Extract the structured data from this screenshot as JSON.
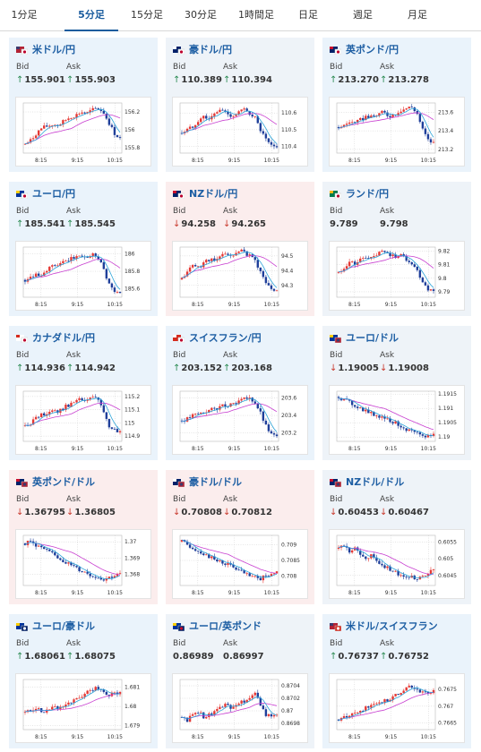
{
  "tabs": [
    "1分足",
    "5分足",
    "15分足",
    "30分足",
    "1時間足",
    "日足",
    "週足",
    "月足"
  ],
  "active_tab": 1,
  "colors": {
    "up": "#2a8a52",
    "down": "#c93a2e",
    "candle_up": "#e53935",
    "candle_down": "#1f3f9a",
    "ma_short": "#29a3d8",
    "ma_long": "#c83fd0"
  },
  "labels": {
    "bid": "Bid",
    "ask": "Ask"
  },
  "cards": [
    {
      "name": "米ドル/円",
      "flag": "us-jp-flag",
      "state": "up",
      "bid": "155.901",
      "ask": "155.903",
      "bid_dir": "up",
      "ask_dir": "up",
      "chart_data": {
        "type": "candlestick",
        "xticks": [
          "8:15",
          "9:15",
          "10:15"
        ],
        "yticks": [
          "156.2",
          "156",
          "155.8"
        ],
        "ylim": [
          155.74,
          156.3
        ],
        "trend": [
          155.84,
          155.88,
          155.96,
          156.02,
          156.04,
          156.06,
          156.05,
          156.1,
          156.14,
          156.16,
          156.2,
          156.18,
          156.22,
          156.24,
          156.2,
          156.08,
          155.96,
          155.9
        ]
      }
    },
    {
      "name": "豪ドル/円",
      "flag": "au-jp-flag",
      "state": "flat",
      "bid": "110.389",
      "ask": "110.394",
      "bid_dir": "up",
      "ask_dir": "up",
      "chart_data": {
        "type": "candlestick",
        "xticks": [
          "8:15",
          "9:15",
          "10:15"
        ],
        "yticks": [
          "110.6",
          "110.5",
          "110.4"
        ],
        "ylim": [
          110.36,
          110.66
        ],
        "trend": [
          110.48,
          110.5,
          110.52,
          110.56,
          110.58,
          110.56,
          110.6,
          110.62,
          110.6,
          110.58,
          110.6,
          110.62,
          110.6,
          110.58,
          110.5,
          110.44,
          110.4,
          110.39
        ]
      }
    },
    {
      "name": "英ポンド/円",
      "flag": "gb-jp-flag",
      "state": "up",
      "bid": "213.270",
      "ask": "213.278",
      "bid_dir": "up",
      "ask_dir": "up",
      "chart_data": {
        "type": "candlestick",
        "xticks": [
          "8:15",
          "9:15",
          "10:15"
        ],
        "yticks": [
          "213.6",
          "213.4",
          "213.2"
        ],
        "ylim": [
          213.16,
          213.7
        ],
        "trend": [
          213.44,
          213.46,
          213.5,
          213.48,
          213.52,
          213.56,
          213.54,
          213.58,
          213.6,
          213.56,
          213.58,
          213.62,
          213.64,
          213.66,
          213.6,
          213.42,
          213.3,
          213.27
        ]
      }
    },
    {
      "name": "ユーロ/円",
      "flag": "eu-jp-flag",
      "state": "up",
      "bid": "185.541",
      "ask": "185.545",
      "bid_dir": "up",
      "ask_dir": "up",
      "chart_data": {
        "type": "candlestick",
        "xticks": [
          "8:15",
          "9:15",
          "10:15"
        ],
        "yticks": [
          "186",
          "185.8",
          "185.6"
        ],
        "ylim": [
          185.5,
          186.08
        ],
        "trend": [
          185.7,
          185.74,
          185.78,
          185.76,
          185.82,
          185.86,
          185.88,
          185.9,
          185.94,
          185.96,
          185.98,
          185.96,
          186.0,
          185.98,
          185.84,
          185.66,
          185.56,
          185.54
        ]
      }
    },
    {
      "name": "NZドル/円",
      "flag": "nz-jp-flag",
      "state": "down",
      "bid": "94.258",
      "ask": "94.265",
      "bid_dir": "down",
      "ask_dir": "down",
      "chart_data": {
        "type": "candlestick",
        "xticks": [
          "8:15",
          "9:15",
          "10:15"
        ],
        "yticks": [
          "94.5",
          "94.4",
          "94.3"
        ],
        "ylim": [
          94.22,
          94.56
        ],
        "trend": [
          94.34,
          94.4,
          94.44,
          94.42,
          94.46,
          94.48,
          94.46,
          94.5,
          94.52,
          94.5,
          94.52,
          94.54,
          94.5,
          94.48,
          94.4,
          94.32,
          94.28,
          94.26
        ]
      }
    },
    {
      "name": "ランド/円",
      "flag": "za-jp-flag",
      "state": "flat",
      "bid": "9.789",
      "ask": "9.798",
      "bid_dir": "none",
      "ask_dir": "none",
      "chart_data": {
        "type": "candlestick",
        "xticks": [
          "8:15",
          "9:15",
          "10:15"
        ],
        "yticks": [
          "9.82",
          "9.81",
          "9.8",
          "9.79"
        ],
        "ylim": [
          9.786,
          9.823
        ],
        "trend": [
          9.804,
          9.808,
          9.812,
          9.81,
          9.814,
          9.816,
          9.814,
          9.818,
          9.82,
          9.818,
          9.816,
          9.818,
          9.814,
          9.812,
          9.806,
          9.798,
          9.792,
          9.79
        ]
      }
    },
    {
      "name": "カナダドル/円",
      "flag": "ca-jp-flag",
      "state": "up",
      "bid": "114.936",
      "ask": "114.942",
      "bid_dir": "up",
      "ask_dir": "up",
      "chart_data": {
        "type": "candlestick",
        "xticks": [
          "8:15",
          "9:15",
          "10:15"
        ],
        "yticks": [
          "115.2",
          "115.1",
          "115",
          "114.9"
        ],
        "ylim": [
          114.86,
          115.24
        ],
        "trend": [
          114.98,
          115.0,
          115.04,
          115.06,
          115.08,
          115.1,
          115.08,
          115.12,
          115.14,
          115.16,
          115.18,
          115.16,
          115.2,
          115.18,
          115.08,
          114.98,
          114.94,
          114.93
        ]
      }
    },
    {
      "name": "スイスフラン/円",
      "flag": "ch-jp-flag",
      "state": "up",
      "bid": "203.152",
      "ask": "203.168",
      "bid_dir": "up",
      "ask_dir": "up",
      "chart_data": {
        "type": "candlestick",
        "xticks": [
          "8:15",
          "9:15",
          "10:15"
        ],
        "yticks": [
          "203.6",
          "203.4",
          "203.2"
        ],
        "ylim": [
          203.1,
          203.68
        ],
        "trend": [
          203.34,
          203.36,
          203.4,
          203.42,
          203.44,
          203.46,
          203.48,
          203.5,
          203.52,
          203.54,
          203.56,
          203.58,
          203.6,
          203.56,
          203.44,
          203.28,
          203.18,
          203.15
        ]
      }
    },
    {
      "name": "ユーロ/ドル",
      "flag": "eu-us-flag",
      "state": "flat",
      "bid": "1.19005",
      "ask": "1.19008",
      "bid_dir": "down",
      "ask_dir": "down",
      "chart_data": {
        "type": "candlestick",
        "xticks": [
          "8:15",
          "9:15",
          "10:15"
        ],
        "yticks": [
          "1.1915",
          "1.191",
          "1.1905",
          "1.19"
        ],
        "ylim": [
          1.18985,
          1.1916
        ],
        "trend": [
          1.1914,
          1.1913,
          1.1912,
          1.1911,
          1.191,
          1.1909,
          1.1908,
          1.19075,
          1.1907,
          1.1906,
          1.1905,
          1.1904,
          1.1903,
          1.1902,
          1.1901,
          1.19,
          1.19005,
          1.19008
        ]
      }
    },
    {
      "name": "英ポンド/ドル",
      "flag": "gb-us-flag",
      "state": "down",
      "bid": "1.36795",
      "ask": "1.36805",
      "bid_dir": "down",
      "ask_dir": "down",
      "chart_data": {
        "type": "candlestick",
        "xticks": [
          "8:15",
          "9:15",
          "10:15"
        ],
        "yticks": [
          "1.37",
          "1.369",
          "1.368"
        ],
        "ylim": [
          1.3673,
          1.3704
        ],
        "trend": [
          1.3699,
          1.37,
          1.3698,
          1.3696,
          1.3694,
          1.3692,
          1.369,
          1.3688,
          1.3686,
          1.3684,
          1.3682,
          1.3681,
          1.3679,
          1.3678,
          1.3677,
          1.3678,
          1.3679,
          1.368
        ]
      }
    },
    {
      "name": "豪ドル/ドル",
      "flag": "au-us-flag",
      "state": "down",
      "bid": "0.70808",
      "ask": "0.70812",
      "bid_dir": "down",
      "ask_dir": "down",
      "chart_data": {
        "type": "candlestick",
        "xticks": [
          "8:15",
          "9:15",
          "10:15"
        ],
        "yticks": [
          "0.709",
          "0.7085",
          "0.708"
        ],
        "ylim": [
          0.7077,
          0.7093
        ],
        "trend": [
          0.7091,
          0.709,
          0.7089,
          0.7088,
          0.7087,
          0.7086,
          0.7085,
          0.70845,
          0.7084,
          0.7083,
          0.7082,
          0.7081,
          0.708,
          0.70795,
          0.7079,
          0.708,
          0.7081,
          0.70812
        ]
      }
    },
    {
      "name": "NZドル/ドル",
      "flag": "nz-us-flag",
      "state": "flat",
      "bid": "0.60453",
      "ask": "0.60467",
      "bid_dir": "down",
      "ask_dir": "down",
      "chart_data": {
        "type": "candlestick",
        "xticks": [
          "8:15",
          "9:15",
          "10:15"
        ],
        "yticks": [
          "0.6055",
          "0.605",
          "0.6045"
        ],
        "ylim": [
          0.6042,
          0.6057
        ],
        "trend": [
          0.6053,
          0.6054,
          0.6052,
          0.6053,
          0.6051,
          0.605,
          0.6051,
          0.6049,
          0.6048,
          0.6047,
          0.6046,
          0.6045,
          0.6044,
          0.6045,
          0.6044,
          0.6045,
          0.6046,
          0.60465
        ]
      }
    },
    {
      "name": "ユーロ/豪ドル",
      "flag": "eu-au-flag",
      "state": "up",
      "bid": "1.68061",
      "ask": "1.68075",
      "bid_dir": "up",
      "ask_dir": "up",
      "chart_data": {
        "type": "candlestick",
        "xticks": [
          "8:15",
          "9:15",
          "10:15"
        ],
        "yticks": [
          "1.681",
          "1.68",
          "1.679"
        ],
        "ylim": [
          1.6788,
          1.6814
        ],
        "trend": [
          1.6797,
          1.6798,
          1.6799,
          1.6797,
          1.6798,
          1.68,
          1.6799,
          1.6801,
          1.6802,
          1.6803,
          1.6805,
          1.6807,
          1.6809,
          1.681,
          1.6808,
          1.6806,
          1.68065,
          1.6807
        ]
      }
    },
    {
      "name": "ユーロ/英ポンド",
      "flag": "eu-gb-flag",
      "state": "flat",
      "bid": "0.86989",
      "ask": "0.86997",
      "bid_dir": "none",
      "ask_dir": "none",
      "chart_data": {
        "type": "candlestick",
        "xticks": [
          "8:15",
          "9:15",
          "10:15"
        ],
        "yticks": [
          "0.8704",
          "0.8702",
          "0.87",
          "0.8698"
        ],
        "ylim": [
          0.8697,
          0.8705
        ],
        "trend": [
          0.8699,
          0.86985,
          0.86995,
          0.87,
          0.8699,
          0.86995,
          0.87,
          0.87005,
          0.8701,
          0.87005,
          0.8701,
          0.87015,
          0.8702,
          0.8703,
          0.8701,
          0.86995,
          0.8699,
          0.86992
        ]
      }
    },
    {
      "name": "米ドル/スイスフラン",
      "flag": "us-ch-flag",
      "state": "up",
      "bid": "0.76737",
      "ask": "0.76752",
      "bid_dir": "up",
      "ask_dir": "up",
      "chart_data": {
        "type": "candlestick",
        "xticks": [
          "8:15",
          "9:15",
          "10:15"
        ],
        "yticks": [
          "0.7675",
          "0.767",
          "0.7665"
        ],
        "ylim": [
          0.7663,
          0.7678
        ],
        "trend": [
          0.7666,
          0.76665,
          0.7667,
          0.7668,
          0.7669,
          0.76695,
          0.767,
          0.7671,
          0.76715,
          0.7672,
          0.7673,
          0.7674,
          0.76755,
          0.7676,
          0.7675,
          0.7674,
          0.76738,
          0.76745
        ]
      }
    }
  ]
}
